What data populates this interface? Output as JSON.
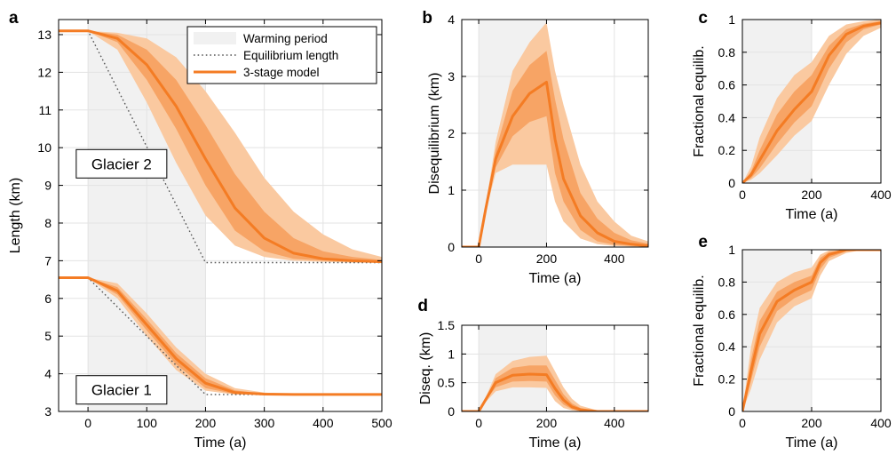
{
  "figure": {
    "colors": {
      "band_outer": "#fac9a0",
      "band_inner": "#f7a465",
      "line": "#f47c24",
      "warming": "#f1f1f1",
      "grid": "#e3e3e3",
      "equilibrium": "#555555"
    }
  },
  "chart_data": [
    {
      "id": "a",
      "panel_label": "a",
      "type": "line",
      "xlabel": "Time (a)",
      "ylabel": "Length (km)",
      "xlim": [
        -50,
        500
      ],
      "ylim": [
        3,
        13.4
      ],
      "xticks": [
        0,
        100,
        200,
        300,
        400,
        500
      ],
      "yticks": [
        3,
        4,
        5,
        6,
        7,
        8,
        9,
        10,
        11,
        12,
        13
      ],
      "grid": true,
      "warming_period": [
        0,
        200
      ],
      "legend": {
        "position": "top-right",
        "items": [
          {
            "label": "Warming period",
            "style": "patch"
          },
          {
            "label": "Equilibrium length",
            "style": "dotted"
          },
          {
            "label": "3-stage model",
            "style": "line"
          }
        ]
      },
      "annotations": [
        {
          "text": "Glacier 2",
          "x": -20,
          "y": 9.95
        },
        {
          "text": "Glacier 1",
          "x": -20,
          "y": 3.95
        }
      ],
      "series": [
        {
          "glacier": 2,
          "equilibrium": {
            "x": [
              -50,
              0,
              200,
              500
            ],
            "y": [
              13.1,
              13.1,
              6.95,
              6.95
            ]
          },
          "model": {
            "x": [
              -50,
              0,
              50,
              100,
              150,
              200,
              250,
              300,
              350,
              400,
              450,
              500
            ],
            "y": [
              13.1,
              13.1,
              12.9,
              12.2,
              11.1,
              9.7,
              8.4,
              7.6,
              7.2,
              7.05,
              7.0,
              6.97
            ]
          },
          "inner_upper": [
            13.1,
            13.1,
            13.0,
            12.6,
            11.8,
            10.6,
            9.3,
            8.3,
            7.6,
            7.25,
            7.1,
            7.02
          ],
          "inner_lower": [
            13.1,
            13.1,
            12.8,
            11.8,
            10.5,
            9.0,
            7.8,
            7.25,
            7.05,
            7.0,
            6.97,
            6.95
          ],
          "outer_upper": [
            13.1,
            13.1,
            13.05,
            12.9,
            12.4,
            11.5,
            10.4,
            9.2,
            8.3,
            7.7,
            7.3,
            7.1
          ],
          "outer_lower": [
            13.1,
            13.1,
            12.6,
            11.2,
            9.6,
            8.2,
            7.4,
            7.1,
            7.0,
            6.97,
            6.95,
            6.95
          ]
        },
        {
          "glacier": 1,
          "equilibrium": {
            "x": [
              -50,
              0,
              200,
              500
            ],
            "y": [
              6.55,
              6.55,
              3.45,
              3.45
            ]
          },
          "model": {
            "x": [
              -50,
              0,
              50,
              100,
              150,
              200,
              250,
              300,
              350,
              400,
              450,
              500
            ],
            "y": [
              6.55,
              6.55,
              6.2,
              5.3,
              4.4,
              3.75,
              3.5,
              3.46,
              3.45,
              3.45,
              3.45,
              3.45
            ]
          },
          "inner_upper": [
            6.55,
            6.55,
            6.3,
            5.45,
            4.55,
            3.88,
            3.56,
            3.47,
            3.45,
            3.45,
            3.45,
            3.45
          ],
          "inner_lower": [
            6.55,
            6.55,
            6.1,
            5.15,
            4.25,
            3.62,
            3.46,
            3.45,
            3.45,
            3.45,
            3.45,
            3.45
          ],
          "outer_upper": [
            6.55,
            6.55,
            6.4,
            5.6,
            4.7,
            4.0,
            3.62,
            3.5,
            3.46,
            3.45,
            3.45,
            3.45
          ],
          "outer_lower": [
            6.55,
            6.55,
            6.0,
            5.0,
            4.1,
            3.55,
            3.45,
            3.45,
            3.45,
            3.45,
            3.45,
            3.45
          ]
        }
      ]
    },
    {
      "id": "b",
      "panel_label": "b",
      "type": "line",
      "xlabel": "Time (a)",
      "ylabel": "Disequilibrium (km)",
      "xlim": [
        -50,
        500
      ],
      "ylim": [
        0,
        4
      ],
      "xticks": [
        0,
        200,
        400
      ],
      "yticks": [
        0,
        1,
        2,
        3,
        4
      ],
      "grid": true,
      "warming_period": [
        0,
        200
      ],
      "series": [
        {
          "x": [
            -50,
            0,
            20,
            50,
            100,
            150,
            200,
            225,
            250,
            300,
            350,
            400,
            450,
            500
          ],
          "y": [
            0,
            0,
            0.65,
            1.55,
            2.3,
            2.7,
            2.9,
            1.9,
            1.2,
            0.55,
            0.25,
            0.1,
            0.05,
            0.02
          ],
          "inner_upper": [
            0,
            0,
            0.68,
            1.7,
            2.75,
            3.2,
            3.45,
            2.6,
            1.9,
            0.95,
            0.5,
            0.25,
            0.12,
            0.06
          ],
          "inner_lower": [
            0,
            0,
            0.62,
            1.4,
            1.95,
            2.2,
            2.3,
            1.3,
            0.8,
            0.3,
            0.1,
            0.04,
            0.02,
            0.01
          ],
          "outer_upper": [
            0,
            0,
            0.7,
            1.85,
            3.1,
            3.6,
            3.95,
            3.1,
            2.5,
            1.45,
            0.8,
            0.45,
            0.2,
            0.1
          ],
          "outer_lower": [
            0,
            0,
            0.6,
            1.3,
            1.45,
            1.45,
            1.45,
            0.8,
            0.45,
            0.15,
            0.05,
            0.02,
            0.01,
            0.0
          ]
        }
      ]
    },
    {
      "id": "c",
      "panel_label": "c",
      "type": "line",
      "xlabel": "Time (a)",
      "ylabel": "Fractional equilib.",
      "xlim": [
        0,
        400
      ],
      "ylim": [
        0,
        1
      ],
      "xticks": [
        0,
        200,
        400
      ],
      "yticks": [
        0,
        0.2,
        0.4,
        0.6,
        0.8,
        1
      ],
      "ytick_labels": [
        "0",
        "0.2",
        "0.4",
        "0.6",
        "0.8",
        "1"
      ],
      "grid": true,
      "warming_period": [
        0,
        200
      ],
      "series": [
        {
          "x": [
            0,
            25,
            50,
            100,
            150,
            200,
            250,
            300,
            350,
            400
          ],
          "y": [
            0,
            0.05,
            0.14,
            0.32,
            0.45,
            0.56,
            0.78,
            0.91,
            0.96,
            0.98
          ],
          "inner_upper": [
            0,
            0.07,
            0.2,
            0.42,
            0.56,
            0.66,
            0.84,
            0.94,
            0.975,
            0.99
          ],
          "inner_lower": [
            0,
            0.03,
            0.09,
            0.24,
            0.37,
            0.47,
            0.7,
            0.86,
            0.94,
            0.97
          ],
          "outer_upper": [
            0,
            0.1,
            0.28,
            0.52,
            0.66,
            0.74,
            0.9,
            0.97,
            0.99,
            1.0
          ],
          "outer_lower": [
            0,
            0.02,
            0.06,
            0.17,
            0.29,
            0.38,
            0.6,
            0.79,
            0.9,
            0.95
          ]
        }
      ]
    },
    {
      "id": "d",
      "panel_label": "d",
      "type": "line",
      "xlabel": "Time (a)",
      "ylabel": "Diseq. (km)",
      "xlim": [
        -50,
        500
      ],
      "ylim": [
        0,
        1.5
      ],
      "xticks": [
        0,
        200,
        400
      ],
      "yticks": [
        0,
        0.5,
        1,
        1.5
      ],
      "ytick_labels": [
        "0",
        "0.5",
        "1",
        "1.5"
      ],
      "grid": true,
      "warming_period": [
        0,
        200
      ],
      "series": [
        {
          "x": [
            -50,
            0,
            20,
            50,
            100,
            150,
            200,
            225,
            250,
            275,
            300,
            350,
            400,
            450,
            500
          ],
          "y": [
            0,
            0,
            0.2,
            0.5,
            0.63,
            0.65,
            0.64,
            0.4,
            0.2,
            0.08,
            0.03,
            0.0,
            0.0,
            0.0,
            0.0
          ],
          "inner_upper": [
            0,
            0,
            0.22,
            0.58,
            0.76,
            0.8,
            0.8,
            0.55,
            0.3,
            0.14,
            0.06,
            0.01,
            0.0,
            0.0,
            0.0
          ],
          "inner_lower": [
            0,
            0,
            0.18,
            0.42,
            0.52,
            0.53,
            0.52,
            0.28,
            0.12,
            0.04,
            0.01,
            0.0,
            0.0,
            0.0,
            0.0
          ],
          "outer_upper": [
            0,
            0,
            0.24,
            0.65,
            0.88,
            0.95,
            0.97,
            0.7,
            0.42,
            0.22,
            0.1,
            0.02,
            0.0,
            0.0,
            0.0
          ],
          "outer_lower": [
            0,
            0,
            0.16,
            0.35,
            0.42,
            0.42,
            0.41,
            0.18,
            0.06,
            0.02,
            0.0,
            0.0,
            0.0,
            0.0,
            0.0
          ]
        }
      ]
    },
    {
      "id": "e",
      "panel_label": "e",
      "type": "line",
      "xlabel": "Time (a)",
      "ylabel": "Fractional equilib.",
      "xlim": [
        0,
        400
      ],
      "ylim": [
        0,
        1
      ],
      "xticks": [
        0,
        200,
        400
      ],
      "yticks": [
        0,
        0.2,
        0.4,
        0.6,
        0.8,
        1
      ],
      "ytick_labels": [
        "0",
        "0.2",
        "0.4",
        "0.6",
        "0.8",
        "1"
      ],
      "grid": true,
      "warming_period": [
        0,
        200
      ],
      "series": [
        {
          "x": [
            0,
            25,
            50,
            100,
            150,
            200,
            225,
            250,
            300,
            350,
            400
          ],
          "y": [
            0,
            0.25,
            0.48,
            0.68,
            0.75,
            0.8,
            0.92,
            0.97,
            1.0,
            1.0,
            1.0
          ],
          "inner_upper": [
            0,
            0.32,
            0.56,
            0.74,
            0.8,
            0.84,
            0.95,
            0.985,
            1.0,
            1.0,
            1.0
          ],
          "inner_lower": [
            0,
            0.19,
            0.4,
            0.62,
            0.7,
            0.75,
            0.88,
            0.95,
            0.99,
            1.0,
            1.0
          ],
          "outer_upper": [
            0,
            0.4,
            0.64,
            0.8,
            0.86,
            0.89,
            0.97,
            0.995,
            1.0,
            1.0,
            1.0
          ],
          "outer_lower": [
            0,
            0.14,
            0.32,
            0.55,
            0.65,
            0.7,
            0.84,
            0.93,
            0.98,
            1.0,
            1.0
          ]
        }
      ]
    }
  ]
}
